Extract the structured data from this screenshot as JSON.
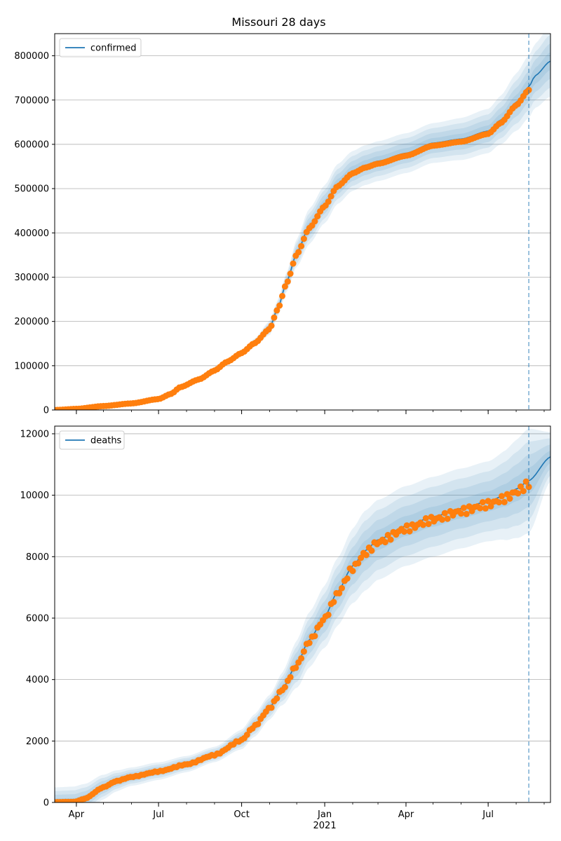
{
  "figure": {
    "title": "Missouri 28 days"
  },
  "colors": {
    "fit": "#1f77b4",
    "observed": "#ff7f0e",
    "band": "#1f77b4",
    "grid": "#b0b0b0",
    "forecast_line": "#1f77b4"
  },
  "chart_data": [
    {
      "type": "line",
      "title": "",
      "legend": {
        "entries": [
          "confirmed"
        ],
        "placement": "top-left"
      },
      "grid": "y",
      "xlim": [
        "2020-03-08",
        "2021-09-08"
      ],
      "ylim": [
        0,
        850000
      ],
      "yticks": [
        0,
        100000,
        200000,
        300000,
        400000,
        500000,
        600000,
        700000,
        800000
      ],
      "forecast_start": "2021-08-15",
      "fit_knots": [
        [
          "2020-03-08",
          0
        ],
        [
          "2020-04-01",
          2500
        ],
        [
          "2020-05-01",
          9000
        ],
        [
          "2020-06-01",
          15000
        ],
        [
          "2020-07-01",
          25000
        ],
        [
          "2020-07-15",
          37000
        ],
        [
          "2020-07-25",
          52000
        ],
        [
          "2020-08-15",
          70000
        ],
        [
          "2020-09-01",
          90000
        ],
        [
          "2020-09-15",
          110000
        ],
        [
          "2020-10-01",
          130000
        ],
        [
          "2020-10-15",
          152000
        ],
        [
          "2020-11-01",
          185000
        ],
        [
          "2020-11-10",
          230000
        ],
        [
          "2020-11-20",
          290000
        ],
        [
          "2020-12-01",
          355000
        ],
        [
          "2020-12-15",
          415000
        ],
        [
          "2021-01-01",
          465000
        ],
        [
          "2021-01-15",
          510000
        ],
        [
          "2021-02-01",
          540000
        ],
        [
          "2021-02-15",
          553000
        ],
        [
          "2021-03-01",
          562000
        ],
        [
          "2021-04-01",
          580000
        ],
        [
          "2021-05-01",
          603000
        ],
        [
          "2021-06-01",
          612000
        ],
        [
          "2021-07-01",
          630000
        ],
        [
          "2021-07-15",
          655000
        ],
        [
          "2021-08-01",
          695000
        ],
        [
          "2021-08-15",
          730000
        ],
        [
          "2021-08-22",
          755000
        ],
        [
          "2021-09-08",
          788000
        ]
      ],
      "band_widths": [
        [
          "2020-03-08",
          0
        ],
        [
          "2020-10-01",
          5000
        ],
        [
          "2020-11-15",
          20000
        ],
        [
          "2020-12-15",
          40000
        ],
        [
          "2021-01-15",
          45000
        ],
        [
          "2021-02-15",
          45000
        ],
        [
          "2021-05-01",
          45000
        ],
        [
          "2021-07-01",
          50000
        ],
        [
          "2021-08-15",
          70000
        ],
        [
          "2021-09-08",
          80000
        ]
      ],
      "observed_range": [
        "2020-03-08",
        "2021-08-15"
      ],
      "series": [
        {
          "name": "confirmed",
          "role": "fit"
        },
        {
          "role": "observed"
        }
      ]
    },
    {
      "type": "line",
      "title": "",
      "legend": {
        "entries": [
          "deaths"
        ],
        "placement": "top-left"
      },
      "grid": "y",
      "xlim": [
        "2020-03-08",
        "2021-09-08"
      ],
      "ylim": [
        0,
        12250
      ],
      "yticks": [
        0,
        2000,
        4000,
        6000,
        8000,
        10000,
        12000
      ],
      "forecast_start": "2021-08-15",
      "fit_knots": [
        [
          "2020-03-08",
          10
        ],
        [
          "2020-03-30",
          20
        ],
        [
          "2020-04-10",
          120
        ],
        [
          "2020-05-01",
          500
        ],
        [
          "2020-05-15",
          700
        ],
        [
          "2020-06-01",
          840
        ],
        [
          "2020-07-01",
          1020
        ],
        [
          "2020-08-01",
          1250
        ],
        [
          "2020-09-01",
          1560
        ],
        [
          "2020-10-01",
          2050
        ],
        [
          "2020-10-15",
          2500
        ],
        [
          "2020-11-01",
          3100
        ],
        [
          "2020-11-15",
          3700
        ],
        [
          "2020-12-01",
          4500
        ],
        [
          "2020-12-15",
          5300
        ],
        [
          "2021-01-01",
          6050
        ],
        [
          "2021-01-15",
          6850
        ],
        [
          "2021-02-01",
          7700
        ],
        [
          "2021-02-15",
          8200
        ],
        [
          "2021-03-01",
          8550
        ],
        [
          "2021-04-01",
          9000
        ],
        [
          "2021-05-01",
          9300
        ],
        [
          "2021-06-01",
          9570
        ],
        [
          "2021-07-01",
          9800
        ],
        [
          "2021-07-20",
          10000
        ],
        [
          "2021-08-01",
          10200
        ],
        [
          "2021-08-15",
          10470
        ],
        [
          "2021-09-08",
          11250
        ]
      ],
      "band_widths": [
        [
          "2020-03-08",
          480
        ],
        [
          "2020-04-01",
          500
        ],
        [
          "2020-06-01",
          300
        ],
        [
          "2020-09-01",
          250
        ],
        [
          "2020-11-01",
          400
        ],
        [
          "2020-12-15",
          900
        ],
        [
          "2021-01-15",
          1100
        ],
        [
          "2021-02-15",
          1300
        ],
        [
          "2021-05-01",
          1300
        ],
        [
          "2021-07-01",
          1300
        ],
        [
          "2021-08-15",
          1700
        ],
        [
          "2021-09-08",
          800
        ]
      ],
      "observed_range": [
        "2020-03-08",
        "2021-08-15"
      ],
      "series": [
        {
          "name": "deaths",
          "role": "fit"
        },
        {
          "role": "observed"
        }
      ]
    }
  ],
  "xaxis": {
    "major_ticks": [
      {
        "date": "2020-04-01",
        "label": "Apr"
      },
      {
        "date": "2020-07-01",
        "label": "Jul"
      },
      {
        "date": "2020-10-01",
        "label": "Oct"
      },
      {
        "date": "2021-01-01",
        "label": "Jan"
      },
      {
        "date": "2021-04-01",
        "label": "Apr"
      },
      {
        "date": "2021-07-01",
        "label": "Jul"
      }
    ],
    "year_label": {
      "date": "2021-01-01",
      "label": "2021"
    }
  }
}
